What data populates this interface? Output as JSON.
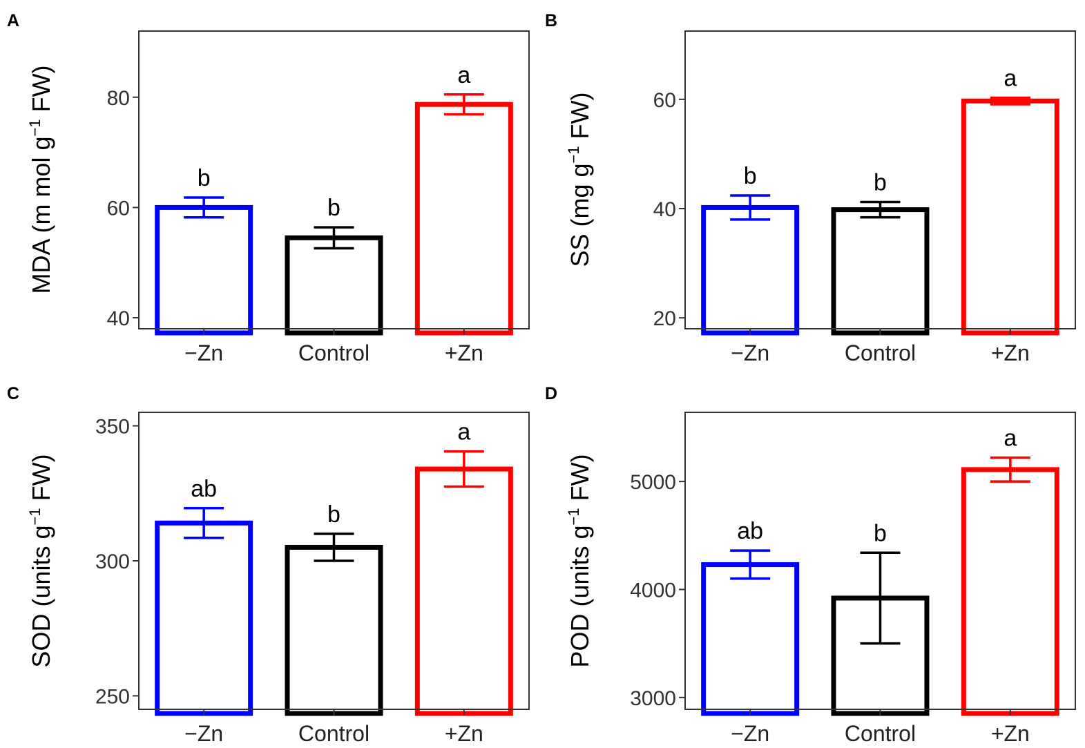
{
  "figure": {
    "series_colors": {
      "minus_zn": "#0000ff",
      "control": "#000000",
      "plus_zn": "#ff0000"
    }
  },
  "chart_data": [
    {
      "panel": "A",
      "type": "bar",
      "categories": [
        "−Zn",
        "Control",
        "+Zn"
      ],
      "values": [
        60.0,
        54.5,
        78.7
      ],
      "errors": [
        1.8,
        1.9,
        1.8
      ],
      "significance": [
        "b",
        "b",
        "a"
      ],
      "ylabel": {
        "main": "MDA (m mol  g",
        "sup": "−1",
        "tail": "  FW)"
      },
      "yticks": [
        40,
        60,
        80
      ],
      "ylim": [
        38,
        92
      ]
    },
    {
      "panel": "B",
      "type": "bar",
      "categories": [
        "−Zn",
        "Control",
        "+Zn"
      ],
      "values": [
        40.2,
        39.8,
        59.7
      ],
      "errors": [
        2.2,
        1.4,
        0.6
      ],
      "significance": [
        "b",
        "b",
        "a"
      ],
      "ylabel": {
        "main": "SS (mg  g",
        "sup": "−1",
        "tail": "  FW)"
      },
      "yticks": [
        20,
        40,
        60
      ],
      "ylim": [
        18,
        72.5
      ]
    },
    {
      "panel": "C",
      "type": "bar",
      "categories": [
        "−Zn",
        "Control",
        "+Zn"
      ],
      "values": [
        314,
        305,
        334
      ],
      "errors": [
        5.5,
        5,
        6.5
      ],
      "significance": [
        "ab",
        "b",
        "a"
      ],
      "ylabel": {
        "main": "SOD (units  g",
        "sup": "−1",
        "tail": "  FW)"
      },
      "yticks": [
        250,
        300,
        350
      ],
      "ylim": [
        245,
        355
      ]
    },
    {
      "panel": "D",
      "type": "bar",
      "categories": [
        "−Zn",
        "Control",
        "+Zn"
      ],
      "values": [
        4230,
        3920,
        5110
      ],
      "errors": [
        130,
        420,
        110
      ],
      "significance": [
        "ab",
        "b",
        "a"
      ],
      "ylabel": {
        "main": "POD (units  g",
        "sup": "−1",
        "tail": "  FW)"
      },
      "yticks": [
        3000,
        4000,
        5000
      ],
      "ylim": [
        2890,
        5640
      ]
    }
  ]
}
